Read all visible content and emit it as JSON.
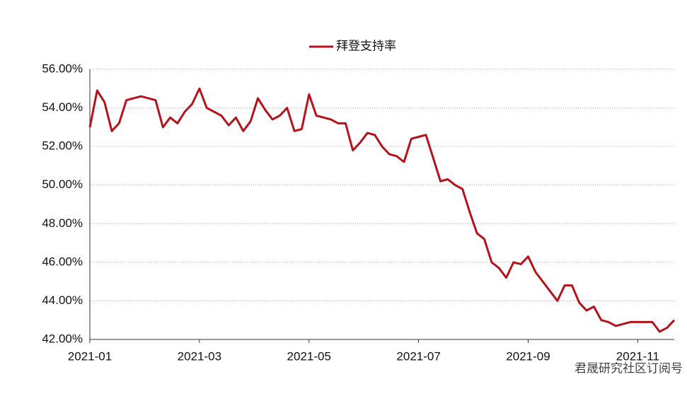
{
  "chart_data": {
    "type": "line",
    "categories": [
      "2021-01",
      null,
      null,
      null,
      null,
      null,
      null,
      null,
      null,
      null,
      null,
      null,
      null,
      null,
      null,
      "2021-03",
      null,
      null,
      null,
      null,
      null,
      null,
      null,
      null,
      null,
      null,
      null,
      null,
      null,
      null,
      "2021-05",
      null,
      null,
      null,
      null,
      null,
      null,
      null,
      null,
      null,
      null,
      null,
      null,
      null,
      null,
      "2021-07",
      null,
      null,
      null,
      null,
      null,
      null,
      null,
      null,
      null,
      null,
      null,
      null,
      null,
      null,
      "2021-09",
      null,
      null,
      null,
      null,
      null,
      null,
      null,
      null,
      null,
      null,
      null,
      null,
      null,
      null,
      "2021-11",
      null,
      null,
      null,
      null,
      null
    ],
    "series": [
      {
        "name": "拜登支持率",
        "color": "#b5121b",
        "values": [
          53.0,
          54.9,
          54.3,
          52.8,
          53.2,
          54.4,
          54.5,
          54.6,
          54.5,
          54.4,
          53.0,
          53.5,
          53.2,
          53.8,
          54.2,
          55.0,
          54.0,
          53.8,
          53.6,
          53.1,
          53.5,
          52.8,
          53.3,
          54.5,
          53.9,
          53.4,
          53.6,
          54.0,
          52.8,
          52.9,
          54.7,
          53.6,
          53.5,
          53.4,
          53.2,
          53.2,
          51.8,
          52.2,
          52.7,
          52.6,
          52.0,
          51.6,
          51.5,
          51.2,
          52.4,
          52.5,
          52.6,
          51.4,
          50.2,
          50.3,
          50.0,
          49.8,
          48.6,
          47.5,
          47.2,
          46.0,
          45.7,
          45.2,
          46.0,
          45.9,
          46.3,
          45.5,
          45.0,
          44.5,
          44.0,
          44.8,
          44.8,
          43.9,
          43.5,
          43.7,
          43.0,
          42.9,
          42.7,
          42.8,
          42.9,
          42.9,
          42.9,
          42.9,
          42.4,
          42.6,
          43.0
        ]
      }
    ],
    "ylim": [
      42,
      56
    ],
    "yticks": [
      {
        "value": 42,
        "label": "42.00%"
      },
      {
        "value": 44,
        "label": "44.00%"
      },
      {
        "value": 46,
        "label": "46.00%"
      },
      {
        "value": 48,
        "label": "48.00%"
      },
      {
        "value": 50,
        "label": "50.00%"
      },
      {
        "value": 52,
        "label": "52.00%"
      },
      {
        "value": 54,
        "label": "54.00%"
      },
      {
        "value": 56,
        "label": "56.00%"
      }
    ],
    "grid": true,
    "legend": "top",
    "annotations": [
      "君晟研究社区订阅号"
    ]
  }
}
